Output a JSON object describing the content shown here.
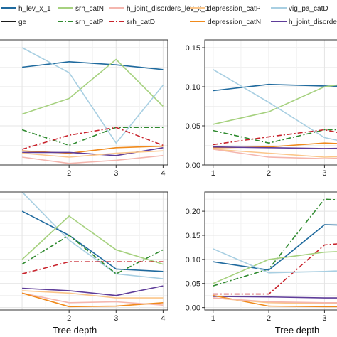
{
  "legend": {
    "items": [
      {
        "label": "h_lev_x_1",
        "color": "#1f6a9e",
        "dash": "solid"
      },
      {
        "label": "srh_catN",
        "color": "#a6d17f",
        "dash": "solid"
      },
      {
        "label": "h_joint_disorders_lev_x_1",
        "color": "#f4b6ae",
        "dash": "solid"
      },
      {
        "label": "depression_catP",
        "color": "#fbc68a",
        "dash": "solid"
      },
      {
        "label": "vig_pa_catD",
        "color": "#a8cfe2",
        "dash": "solid"
      },
      {
        "label": "ge",
        "color": "#1a1a1a",
        "dash": "solid"
      },
      {
        "label": "srh_catP",
        "color": "#2f8a2f",
        "dash": "dashdot"
      },
      {
        "label": "srh_catD",
        "color": "#c8232c",
        "dash": "dashdot"
      },
      {
        "label": "depression_catN",
        "color": "#f08a1c",
        "dash": "solid"
      },
      {
        "label": "h_joint_disorders",
        "color": "#5e3c99",
        "dash": "solid"
      }
    ]
  },
  "xlabels": [
    "Tree depth",
    "Tree depth"
  ],
  "chart_data": [
    {
      "type": "line",
      "x": [
        1,
        2,
        3,
        4
      ],
      "xticks": [
        "2",
        "3",
        "4"
      ],
      "yticks": [],
      "ylim": [
        0.0,
        0.16
      ],
      "xlabel": "",
      "grid": true,
      "series": [
        {
          "name": "h_lev_x_1",
          "values": [
            0.125,
            0.132,
            0.128,
            0.122
          ]
        },
        {
          "name": "srh_catN",
          "values": [
            0.065,
            0.085,
            0.135,
            0.075
          ]
        },
        {
          "name": "vig_pa_catD",
          "values": [
            0.15,
            0.118,
            0.028,
            0.102
          ]
        },
        {
          "name": "srh_catP",
          "values": [
            0.045,
            0.025,
            0.048,
            0.048
          ]
        },
        {
          "name": "srh_catD",
          "values": [
            0.02,
            0.038,
            0.048,
            0.025
          ]
        },
        {
          "name": "depression_catN",
          "values": [
            0.018,
            0.015,
            0.022,
            0.024
          ]
        },
        {
          "name": "h_joint_disorders",
          "values": [
            0.016,
            0.016,
            0.012,
            0.022
          ]
        },
        {
          "name": "depression_catP",
          "values": [
            0.015,
            0.01,
            0.015,
            0.018
          ]
        },
        {
          "name": "h_joint_disorders_lev_x_1",
          "values": [
            0.01,
            0.002,
            0.006,
            0.012
          ]
        }
      ]
    },
    {
      "type": "line",
      "x": [
        1,
        2,
        3,
        4
      ],
      "xticks": [
        "1",
        "2",
        "3"
      ],
      "yticks": [
        "0.00",
        "0.05",
        "0.10",
        "0.15"
      ],
      "ylim": [
        0.0,
        0.16
      ],
      "xlabel": "",
      "grid": true,
      "series": [
        {
          "name": "h_lev_x_1",
          "values": [
            0.095,
            0.103,
            0.101,
            0.1
          ]
        },
        {
          "name": "srh_catN",
          "values": [
            0.052,
            0.068,
            0.1,
            0.11
          ]
        },
        {
          "name": "vig_pa_catD",
          "values": [
            0.122,
            0.08,
            0.035,
            0.02
          ]
        },
        {
          "name": "srh_catP",
          "values": [
            0.044,
            0.028,
            0.045,
            0.045
          ]
        },
        {
          "name": "srh_catD",
          "values": [
            0.026,
            0.036,
            0.045,
            0.03
          ]
        },
        {
          "name": "depression_catN",
          "values": [
            0.022,
            0.023,
            0.028,
            0.025
          ]
        },
        {
          "name": "h_joint_disorders",
          "values": [
            0.023,
            0.022,
            0.021,
            0.022
          ]
        },
        {
          "name": "depression_catP",
          "values": [
            0.02,
            0.015,
            0.01,
            0.012
          ]
        },
        {
          "name": "h_joint_disorders_lev_x_1",
          "values": [
            0.02,
            0.01,
            0.008,
            0.01
          ]
        }
      ]
    },
    {
      "type": "line",
      "x": [
        1,
        2,
        3,
        4
      ],
      "xticks": [
        "2",
        "3",
        "4"
      ],
      "yticks": [],
      "ylim": [
        -0.005,
        0.24
      ],
      "xlabel": "Tree depth",
      "grid": true,
      "series": [
        {
          "name": "vig_pa_catD",
          "values": [
            0.24,
            0.14,
            0.07,
            0.06
          ]
        },
        {
          "name": "h_lev_x_1",
          "values": [
            0.2,
            0.15,
            0.08,
            0.075
          ]
        },
        {
          "name": "srh_catN",
          "values": [
            0.1,
            0.19,
            0.12,
            0.09
          ]
        },
        {
          "name": "srh_catP",
          "values": [
            0.09,
            0.15,
            0.07,
            0.12
          ]
        },
        {
          "name": "srh_catD",
          "values": [
            0.07,
            0.095,
            0.095,
            0.095
          ]
        },
        {
          "name": "h_joint_disorders",
          "values": [
            0.04,
            0.035,
            0.025,
            0.045
          ]
        },
        {
          "name": "depression_catP",
          "values": [
            0.035,
            0.03,
            0.02,
            0.02
          ]
        },
        {
          "name": "h_joint_disorders_lev_x_1",
          "values": [
            0.03,
            0.01,
            0.012,
            0.005
          ]
        },
        {
          "name": "depression_catN",
          "values": [
            0.03,
            0.002,
            0.003,
            0.01
          ]
        }
      ]
    },
    {
      "type": "line",
      "x": [
        1,
        2,
        3,
        4
      ],
      "xticks": [
        "1",
        "2",
        "3"
      ],
      "yticks": [
        "0.00",
        "0.05",
        "0.10",
        "0.15",
        "0.20"
      ],
      "ylim": [
        -0.005,
        0.24
      ],
      "xlabel": "Tree depth",
      "grid": true,
      "series": [
        {
          "name": "srh_catP",
          "values": [
            0.045,
            0.08,
            0.225,
            0.22
          ]
        },
        {
          "name": "h_lev_x_1",
          "values": [
            0.095,
            0.078,
            0.172,
            0.17
          ]
        },
        {
          "name": "srh_catD",
          "values": [
            0.028,
            0.028,
            0.13,
            0.14
          ]
        },
        {
          "name": "srh_catN",
          "values": [
            0.05,
            0.1,
            0.115,
            0.12
          ]
        },
        {
          "name": "vig_pa_catD",
          "values": [
            0.122,
            0.072,
            0.075,
            0.08
          ]
        },
        {
          "name": "h_joint_disorders",
          "values": [
            0.023,
            0.022,
            0.02,
            0.02
          ]
        },
        {
          "name": "depression_catN",
          "values": [
            0.025,
            0.003,
            0.002,
            0.002
          ]
        },
        {
          "name": "depression_catP",
          "values": [
            0.02,
            0.01,
            0.008,
            0.008
          ]
        },
        {
          "name": "h_joint_disorders_lev_x_1",
          "values": [
            0.02,
            0.012,
            0.01,
            0.01
          ]
        }
      ]
    }
  ]
}
